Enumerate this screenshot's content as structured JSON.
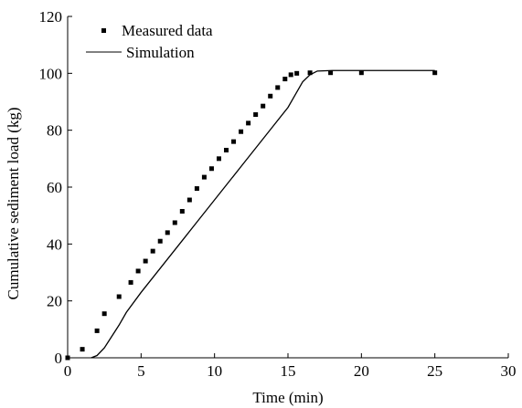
{
  "chart_data": {
    "type": "scatter",
    "title": "",
    "xlabel": "Time (min)",
    "ylabel": "Cumulative sediment load (kg)",
    "xlim": [
      0,
      30
    ],
    "ylim": [
      0,
      120
    ],
    "xticks": [
      0,
      5,
      10,
      15,
      20,
      25,
      30
    ],
    "yticks": [
      0,
      20,
      40,
      60,
      80,
      100,
      120
    ],
    "grid": false,
    "legend_position": "top-left",
    "series": [
      {
        "name": "Measured data",
        "type": "scatter",
        "marker": "square",
        "color": "#000000",
        "x": [
          0,
          1,
          2,
          2.5,
          3.5,
          4.3,
          4.8,
          5.3,
          5.8,
          6.3,
          6.8,
          7.3,
          7.8,
          8.3,
          8.8,
          9.3,
          9.8,
          10.3,
          10.8,
          11.3,
          11.8,
          12.3,
          12.8,
          13.3,
          13.8,
          14.3,
          14.8,
          15.2,
          15.6,
          16.5,
          17.9,
          20,
          25
        ],
        "y": [
          0,
          3,
          9.5,
          15.5,
          21.5,
          26.5,
          30.5,
          34,
          37.5,
          41,
          44,
          47.5,
          51.5,
          55.5,
          59.5,
          63.5,
          66.5,
          70,
          73,
          76,
          79.5,
          82.5,
          85.5,
          88.5,
          92,
          95,
          98,
          99.5,
          100,
          100.2,
          100.2,
          100.2,
          100.2
        ]
      },
      {
        "name": "Simulation",
        "type": "line",
        "color": "#000000",
        "x": [
          1.6,
          2.0,
          2.5,
          3.0,
          3.5,
          4.0,
          5,
          6,
          7,
          8,
          9,
          10,
          11,
          12,
          13,
          14,
          15,
          15.5,
          16,
          16.5,
          17,
          18,
          20,
          25
        ],
        "y": [
          0,
          0.8,
          3.5,
          7.5,
          11.5,
          16,
          23,
          29.5,
          36,
          42.5,
          49,
          55.5,
          62,
          68.5,
          75,
          81.5,
          88,
          92.5,
          97,
          99.5,
          100.8,
          101,
          101,
          101
        ]
      }
    ]
  }
}
